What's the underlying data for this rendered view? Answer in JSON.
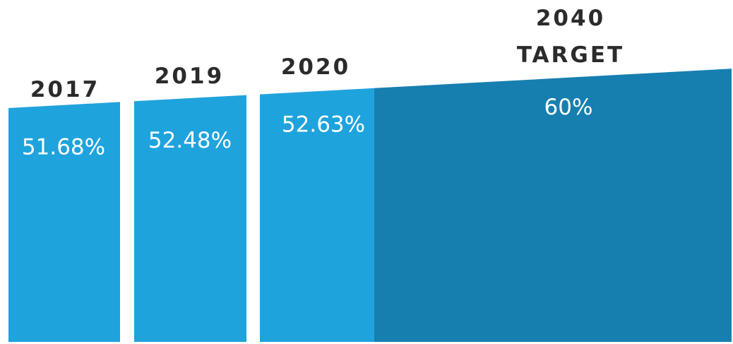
{
  "chart_data": {
    "type": "bar",
    "categories": [
      "2017",
      "2019",
      "2020",
      "2040 TARGET"
    ],
    "category_lines": [
      [
        "2017"
      ],
      [
        "2019"
      ],
      [
        "2020"
      ],
      [
        "2040",
        "TARGET"
      ]
    ],
    "values": [
      51.68,
      52.48,
      52.63,
      60
    ],
    "value_labels": [
      "51.68%",
      "52.48%",
      "52.63%",
      "60%"
    ],
    "colors": {
      "actual": "#1FA3DD",
      "target": "#167FAF",
      "year_text": "#2B2B2B",
      "value_text": "#FFFFFF"
    }
  }
}
